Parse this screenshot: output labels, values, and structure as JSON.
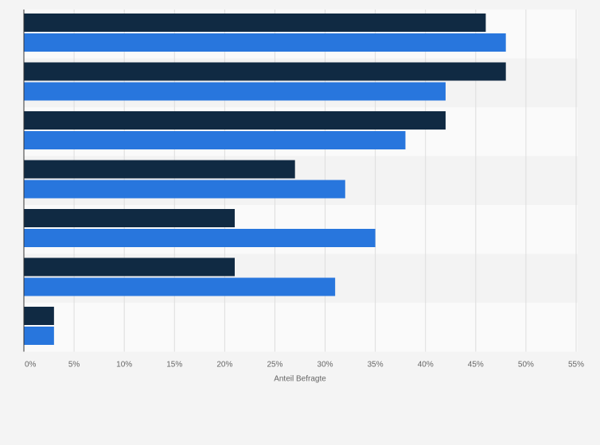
{
  "chart_data": {
    "type": "bar",
    "orientation": "horizontal",
    "categories": [
      "",
      "",
      "",
      "",
      "",
      "",
      ""
    ],
    "series": [
      {
        "color": "#102a43",
        "values": [
          46,
          48,
          42,
          27,
          21,
          21,
          3
        ]
      },
      {
        "color": "#2876dd",
        "values": [
          48,
          42,
          38,
          32,
          35,
          31,
          3
        ]
      }
    ],
    "xlim": [
      0,
      55
    ],
    "xticks": [
      "0%",
      "5%",
      "10%",
      "15%",
      "20%",
      "25%",
      "30%",
      "35%",
      "40%",
      "45%",
      "50%",
      "55%"
    ],
    "xlabel": "Anteil Befragte",
    "ylabel": "",
    "title": "",
    "grid": true,
    "legend": "none",
    "colors": {
      "background": "#f4f4f4",
      "band_light": "#fafafa",
      "band_dark": "#f3f3f3",
      "grid": "#dddddd",
      "axis": "#333333"
    }
  }
}
